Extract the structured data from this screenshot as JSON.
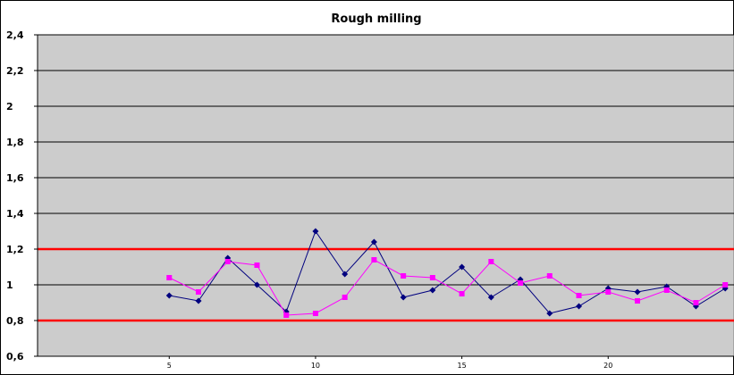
{
  "chart_data": {
    "type": "line",
    "title": "Rough milling",
    "xlabel": "",
    "ylabel": "",
    "xlim": [
      0.5,
      24.3
    ],
    "ylim": [
      0.6,
      2.4
    ],
    "y_ticks": [
      0.6,
      0.8,
      1.0,
      1.2,
      1.4,
      1.6,
      1.8,
      2.0,
      2.2,
      2.4
    ],
    "y_tick_labels": [
      "0,6",
      "0,8",
      "1",
      "1,2",
      "1,4",
      "1,6",
      "1,8",
      "2",
      "2,2",
      "2,4"
    ],
    "x_ticks": [
      5,
      10,
      15,
      20
    ],
    "x_tick_labels": [
      "5",
      "10",
      "15",
      "20"
    ],
    "grid": true,
    "background": "#cccccc",
    "limit_lines": [
      0.8,
      1.2
    ],
    "limit_line_color": "#ff0000",
    "series": [
      {
        "color": "#00007f",
        "marker": "diamond",
        "x": [
          5,
          6,
          7,
          8,
          9,
          10,
          11,
          12,
          13,
          14,
          15,
          16,
          17,
          18,
          19,
          20,
          21,
          22,
          23,
          24
        ],
        "values": [
          0.94,
          0.91,
          1.15,
          1.0,
          0.85,
          1.3,
          1.06,
          1.24,
          0.93,
          0.97,
          1.1,
          0.93,
          1.03,
          0.84,
          0.88,
          0.98,
          0.96,
          0.99,
          0.88,
          0.98
        ]
      },
      {
        "color": "#ff00ff",
        "marker": "square",
        "x": [
          5,
          6,
          7,
          8,
          9,
          10,
          11,
          12,
          13,
          14,
          15,
          16,
          17,
          18,
          19,
          20,
          21,
          22,
          23,
          24
        ],
        "values": [
          1.04,
          0.96,
          1.13,
          1.11,
          0.83,
          0.84,
          0.93,
          1.14,
          1.05,
          1.04,
          0.95,
          1.13,
          1.01,
          1.05,
          0.94,
          0.96,
          0.91,
          0.97,
          0.9,
          1.0
        ]
      }
    ]
  }
}
